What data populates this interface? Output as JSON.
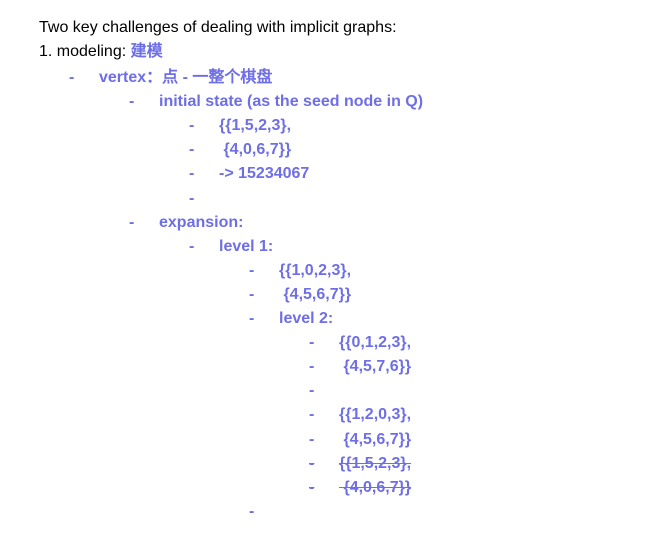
{
  "intro": "Two key challenges of dealing with implicit graphs:",
  "item1": {
    "number": "1. modeling:",
    "cn": "建模"
  },
  "outline": [
    {
      "level": 1,
      "text": "vertex：点 - 一整个棋盘",
      "struck": false
    },
    {
      "level": 2,
      "text": "initial state (as the seed node in Q)",
      "struck": false
    },
    {
      "level": 3,
      "text": "{{1,5,2,3},",
      "struck": false
    },
    {
      "level": 3,
      "text": " {4,0,6,7}}",
      "struck": false
    },
    {
      "level": 3,
      "text": "-> 15234067",
      "struck": false
    },
    {
      "level": 3,
      "text": "",
      "struck": false
    },
    {
      "level": 2,
      "text": "expansion:",
      "struck": false
    },
    {
      "level": 3,
      "text": "level 1:",
      "struck": false
    },
    {
      "level": 4,
      "text": "{{1,0,2,3},",
      "struck": false
    },
    {
      "level": 4,
      "text": " {4,5,6,7}}",
      "struck": false
    },
    {
      "level": 4,
      "text": "level 2:",
      "struck": false
    },
    {
      "level": 5,
      "text": "{{0,1,2,3},",
      "struck": false
    },
    {
      "level": 5,
      "text": " {4,5,7,6}}",
      "struck": false
    },
    {
      "level": 5,
      "text": "",
      "struck": false
    },
    {
      "level": 5,
      "text": "{{1,2,0,3},",
      "struck": false
    },
    {
      "level": 5,
      "text": " {4,5,6,7}}",
      "struck": false
    },
    {
      "level": 5,
      "text": "{{1,5,2,3},",
      "struck": true
    },
    {
      "level": 5,
      "text": " {4,0,6,7}}",
      "struck": true
    },
    {
      "level": 4,
      "text": "",
      "struck": false
    }
  ]
}
